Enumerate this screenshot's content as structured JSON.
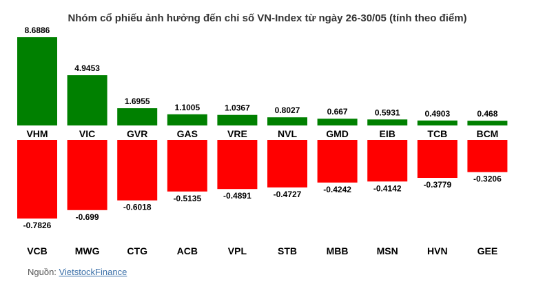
{
  "chart_data": {
    "type": "bar",
    "title": "Nhóm cổ phiếu ảnh hưởng đến chỉ số VN-Index từ ngày 26-30/05 (tính theo điểm)",
    "series": [
      {
        "categories": [
          "VHM",
          "VIC",
          "GVR",
          "GAS",
          "VRE",
          "NVL",
          "GMD",
          "EIB",
          "TCB",
          "BCM"
        ],
        "values": [
          8.6886,
          4.9453,
          1.6955,
          1.1005,
          1.0367,
          0.8027,
          0.667,
          0.5931,
          0.4903,
          0.468
        ],
        "value_labels": [
          "8.6886",
          "4.9453",
          "1.6955",
          "1.1005",
          "1.0367",
          "0.8027",
          "0.667",
          "0.5931",
          "0.4903",
          "0.468"
        ],
        "color": "#008000"
      },
      {
        "categories": [
          "VCB",
          "MWG",
          "CTG",
          "ACB",
          "VPL",
          "STB",
          "MBB",
          "MSN",
          "HVN",
          "GEE"
        ],
        "values": [
          -0.7826,
          -0.699,
          -0.6018,
          -0.5135,
          -0.4891,
          -0.4727,
          -0.4242,
          -0.4142,
          -0.3779,
          -0.3206
        ],
        "value_labels": [
          "-0.7826",
          "-0.699",
          "-0.6018",
          "-0.5135",
          "-0.4891",
          "-0.4727",
          "-0.4242",
          "-0.4142",
          "-0.3779",
          "-0.3206"
        ],
        "color": "#ff0000"
      }
    ],
    "grid": false,
    "legend": "none"
  },
  "source": {
    "prefix": "Nguồn:",
    "link_text": "VietstockFinance"
  }
}
